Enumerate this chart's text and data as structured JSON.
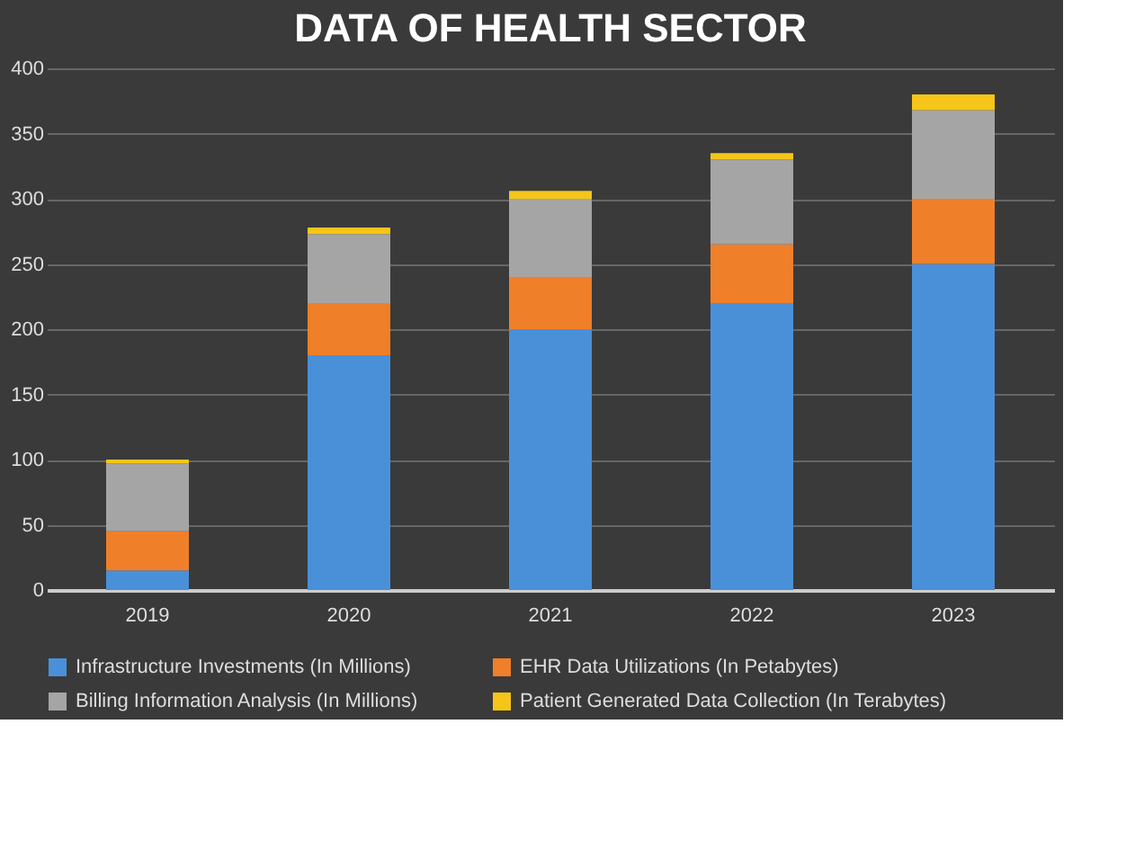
{
  "chart_data": {
    "type": "bar",
    "title": "DATA OF HEALTH SECTOR",
    "stacked": true,
    "categories": [
      "2019",
      "2020",
      "2021",
      "2022",
      "2023"
    ],
    "series": [
      {
        "name": "Infrastructure Investments (In Millions)",
        "color": "#4a90d9",
        "values": [
          15,
          180,
          200,
          220,
          250
        ]
      },
      {
        "name": "EHR Data Utilizations (In Petabytes)",
        "color": "#f07f2a",
        "values": [
          30,
          40,
          40,
          45,
          50
        ]
      },
      {
        "name": "Billing Information Analysis (In Millions)",
        "color": "#a5a5a5",
        "values": [
          52,
          53,
          60,
          65,
          68
        ]
      },
      {
        "name": "Patient Generated Data Collection (In Terabytes)",
        "color": "#f5c518",
        "values": [
          3,
          5,
          6,
          5,
          12
        ]
      }
    ],
    "ylim": [
      0,
      400
    ],
    "yticks": [
      0,
      50,
      100,
      150,
      200,
      250,
      300,
      350,
      400
    ],
    "grid": "y",
    "legend": "bottom"
  }
}
